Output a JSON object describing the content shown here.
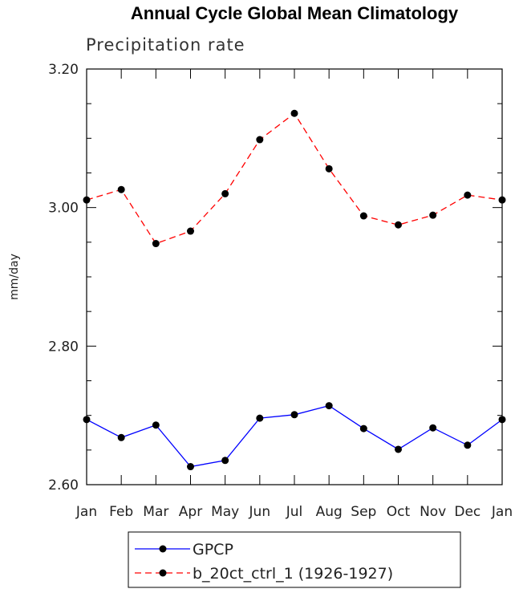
{
  "chart_data": {
    "type": "line",
    "title": "Annual Cycle Global Mean Climatology",
    "subtitle": "Precipitation rate",
    "xlabel": "",
    "ylabel": "mm/day",
    "categories": [
      "Jan",
      "Feb",
      "Mar",
      "Apr",
      "May",
      "Jun",
      "Jul",
      "Aug",
      "Sep",
      "Oct",
      "Nov",
      "Dec",
      "Jan"
    ],
    "ylim": [
      2.6,
      3.2
    ],
    "yticks": [
      "2.60",
      "2.80",
      "3.00",
      "3.20"
    ],
    "grid": false,
    "legend_position": "bottom",
    "series": [
      {
        "name": "GPCP",
        "color": "#0000ff",
        "line_style": "solid",
        "marker": "filled-circle",
        "values": [
          2.694,
          2.668,
          2.686,
          2.626,
          2.635,
          2.696,
          2.701,
          2.714,
          2.681,
          2.651,
          2.682,
          2.657,
          2.694
        ]
      },
      {
        "name": "b_20ct_ctrl_1 (1926-1927)",
        "color": "#ff0000",
        "line_style": "dashed",
        "marker": "filled-circle",
        "values": [
          3.011,
          3.026,
          2.948,
          2.966,
          3.02,
          3.098,
          3.136,
          3.056,
          2.988,
          2.975,
          2.989,
          3.018,
          3.011
        ]
      }
    ]
  }
}
